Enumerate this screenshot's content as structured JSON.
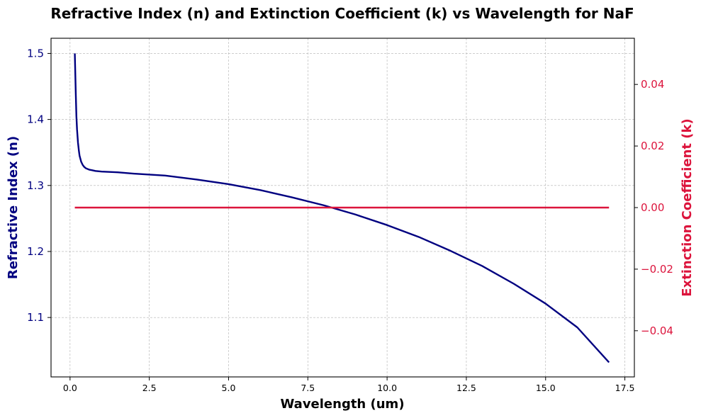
{
  "chart_data": {
    "type": "line",
    "title": "Refractive Index (n) and Extinction Coefficient (k) vs Wavelength for NaF",
    "xlabel": "Wavelength (um)",
    "ylabel": "Refractive Index (n)",
    "ylabel_right": "Extinction Coefficient (k)",
    "xlim": [
      -0.6,
      17.8
    ],
    "ylim": [
      1.01,
      1.523
    ],
    "ylim_right": [
      -0.055,
      0.055
    ],
    "xticks": [
      0.0,
      2.5,
      5.0,
      7.5,
      10.0,
      12.5,
      15.0,
      17.5
    ],
    "xtick_labels": [
      "0.0",
      "2.5",
      "5.0",
      "7.5",
      "10.0",
      "12.5",
      "15.0",
      "17.5"
    ],
    "yticks": [
      1.1,
      1.2,
      1.3,
      1.4,
      1.5
    ],
    "ytick_labels": [
      "1.1",
      "1.2",
      "1.3",
      "1.4",
      "1.5"
    ],
    "yticks_right": [
      -0.04,
      -0.02,
      0.0,
      0.02,
      0.04
    ],
    "ytick_labels_right": [
      "−0.04",
      "−0.02",
      "0.00",
      "0.02",
      "0.04"
    ],
    "grid": true,
    "colors": {
      "n": "#000080",
      "k": "#dc143c",
      "grid": "#b0b0b0"
    },
    "series": [
      {
        "axis": "left",
        "x": [
          0.15,
          0.18,
          0.2,
          0.22,
          0.25,
          0.28,
          0.3,
          0.35,
          0.4,
          0.45,
          0.5,
          0.6,
          0.7,
          0.8,
          1.0,
          1.5,
          2.0,
          3.0,
          4.0,
          5.0,
          6.0,
          7.0,
          8.0,
          9.0,
          10.0,
          11.0,
          12.0,
          13.0,
          14.0,
          15.0,
          16.0,
          17.0
        ],
        "values": [
          1.5,
          1.44,
          1.405,
          1.385,
          1.365,
          1.352,
          1.345,
          1.336,
          1.331,
          1.328,
          1.326,
          1.324,
          1.323,
          1.322,
          1.321,
          1.32,
          1.318,
          1.315,
          1.309,
          1.302,
          1.293,
          1.282,
          1.27,
          1.256,
          1.24,
          1.222,
          1.201,
          1.178,
          1.151,
          1.121,
          1.085,
          1.032
        ]
      },
      {
        "axis": "right",
        "x": [
          0.15,
          17.0
        ],
        "values": [
          0.0,
          0.0
        ]
      }
    ]
  }
}
